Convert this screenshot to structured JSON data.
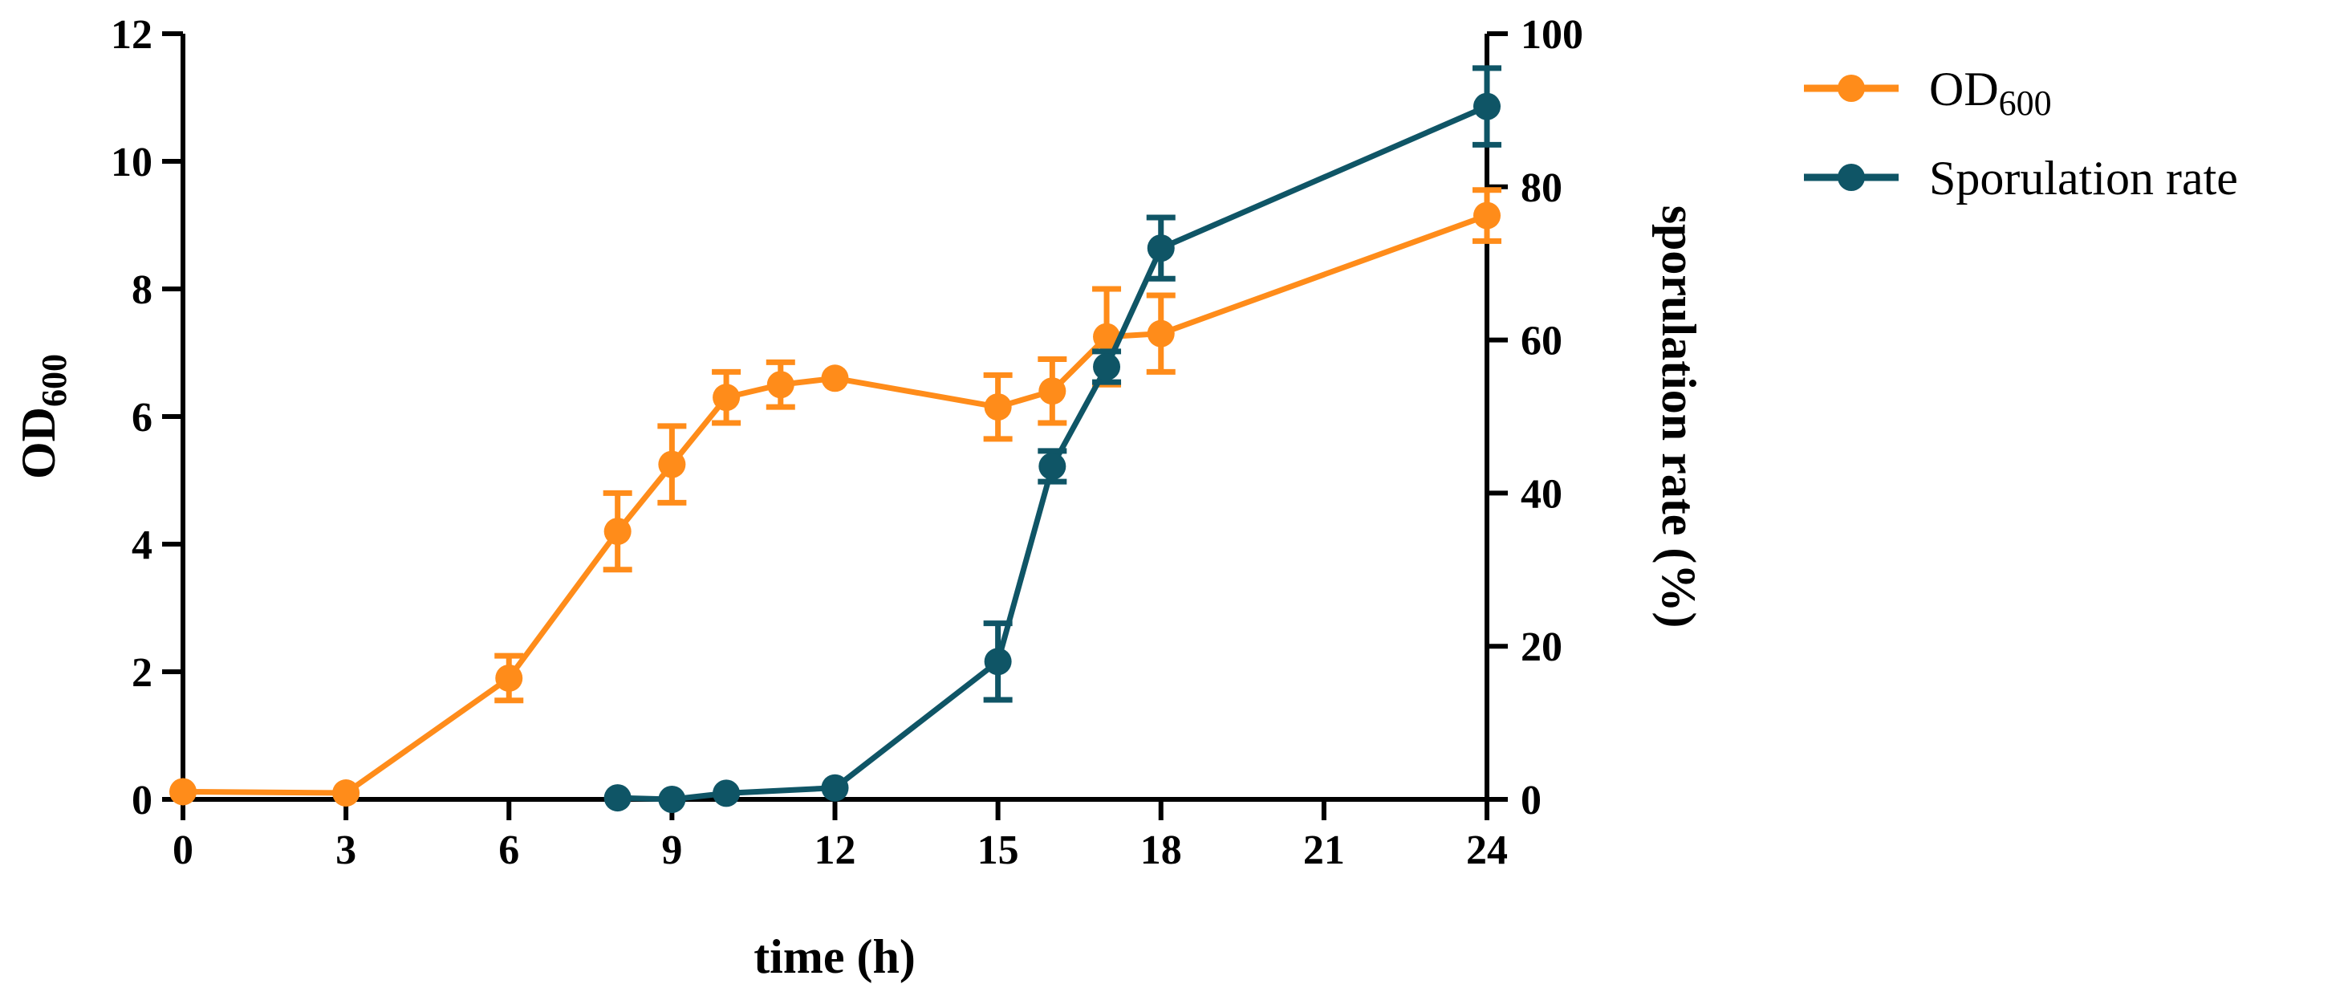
{
  "colors": {
    "od600": "#ff8c1a",
    "sporulation": "#0f5566",
    "axis": "#000000"
  },
  "chart_data": {
    "type": "line",
    "xlabel": "time (h)",
    "ylabel": {
      "main": "OD",
      "sub": "600"
    },
    "y2label": "sporulation rate (%)",
    "xlim": [
      0,
      24
    ],
    "ylim": [
      0,
      12
    ],
    "y2lim": [
      0,
      100
    ],
    "xticks": [
      0,
      3,
      6,
      9,
      12,
      15,
      18,
      21,
      24
    ],
    "yticks": [
      0,
      2,
      4,
      6,
      8,
      10,
      12
    ],
    "y2ticks": [
      0,
      20,
      40,
      60,
      80,
      100
    ],
    "legend": {
      "position": "top-right",
      "entries": [
        {
          "main": "OD",
          "sub": "600"
        },
        {
          "main": "Sporulation rate",
          "sub": ""
        }
      ]
    },
    "series": [
      {
        "name": "OD600",
        "axis": "left",
        "x": [
          0,
          3,
          6,
          8,
          9,
          10,
          11,
          12,
          15,
          16,
          17,
          18,
          24
        ],
        "y": [
          0.12,
          0.1,
          1.9,
          4.2,
          5.25,
          6.3,
          6.5,
          6.6,
          6.15,
          6.4,
          7.25,
          7.3,
          9.15
        ],
        "err": [
          0,
          0,
          0.35,
          0.6,
          0.6,
          0.4,
          0.35,
          0,
          0.5,
          0.5,
          0.75,
          0.6,
          0.4
        ]
      },
      {
        "name": "Sporulation rate",
        "axis": "right",
        "x": [
          8,
          9,
          10,
          12,
          15,
          16,
          17,
          18,
          24
        ],
        "y": [
          0.2,
          0,
          0.8,
          1.5,
          18,
          43.5,
          56.5,
          72,
          90.5
        ],
        "err": [
          0,
          0,
          0,
          0,
          5,
          2,
          2,
          4,
          5
        ]
      }
    ]
  }
}
